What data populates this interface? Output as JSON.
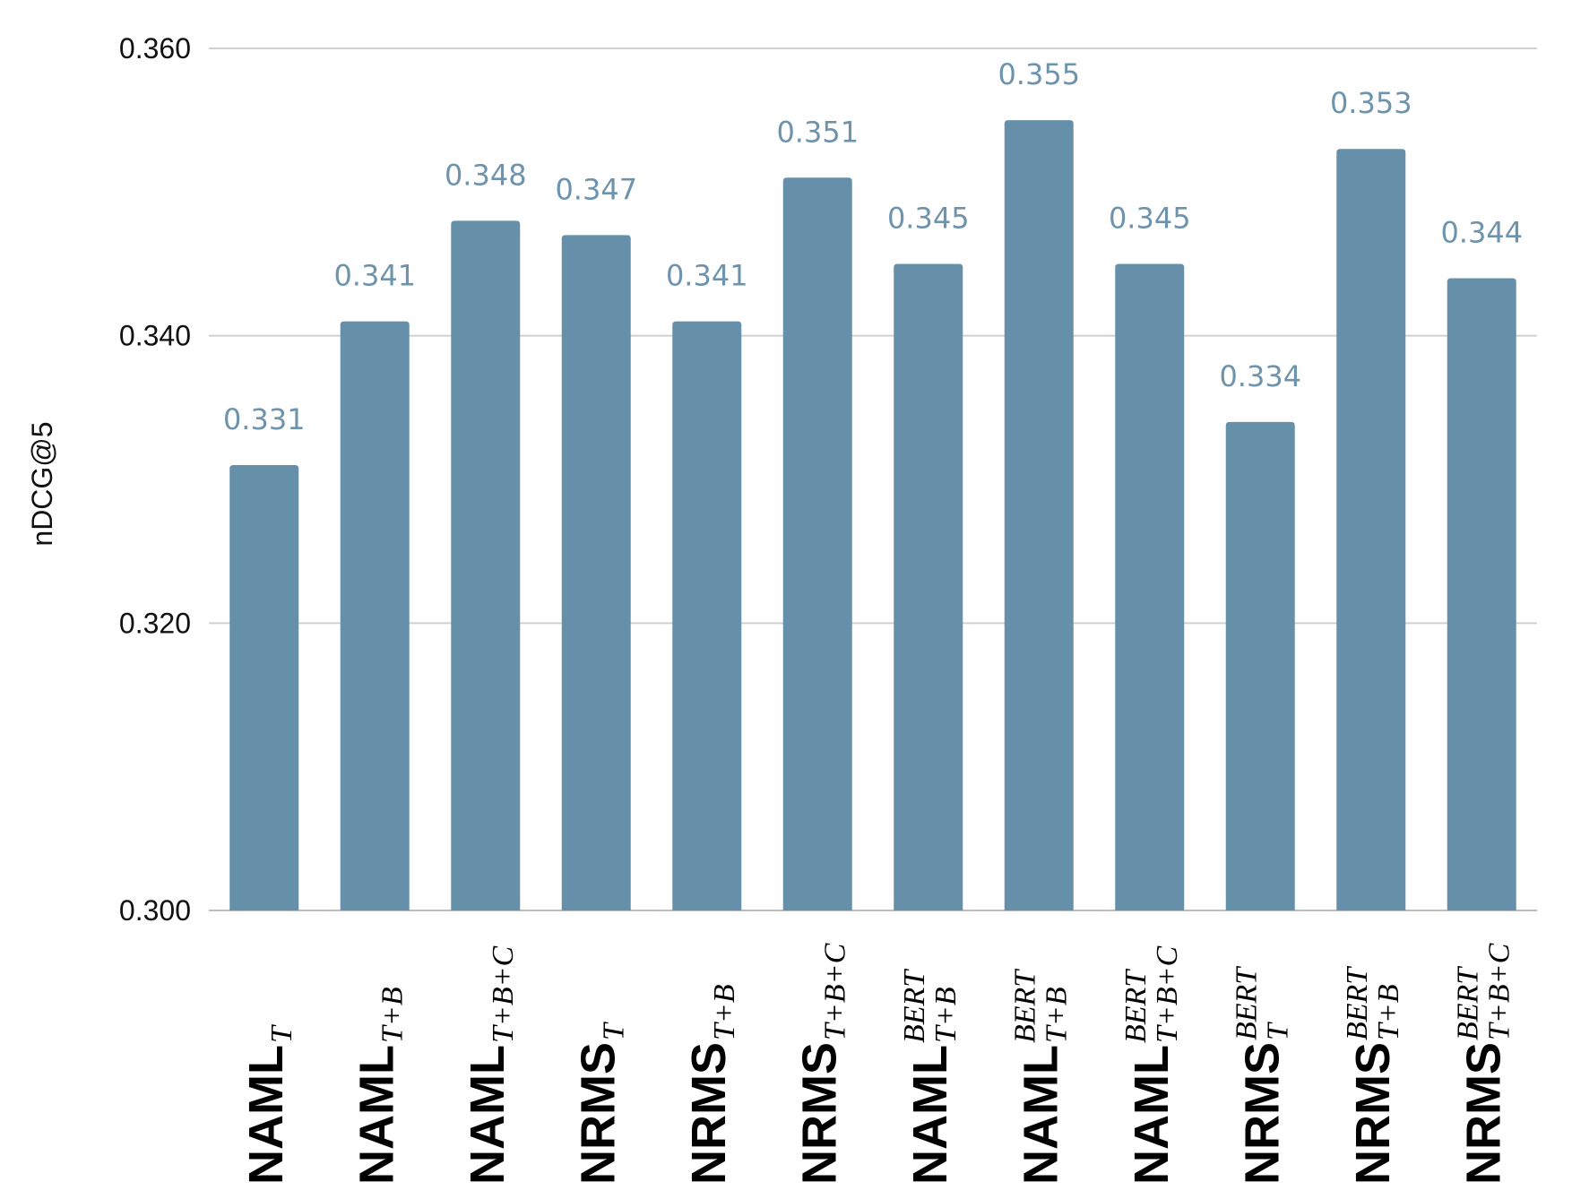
{
  "chart_data": {
    "type": "bar",
    "ylabel": "nDCG@5",
    "ylim": [
      0.3,
      0.36
    ],
    "yticks": [
      "0.300",
      "0.320",
      "0.340",
      "0.360"
    ],
    "grid": true,
    "bar_color": "#6690aa",
    "label_color": "#6e94ad",
    "categories": [
      {
        "base": "NAML",
        "sub": "T",
        "sup": ""
      },
      {
        "base": "NAML",
        "sub": "T+B",
        "sup": ""
      },
      {
        "base": "NAML",
        "sub": "T+B+C",
        "sup": ""
      },
      {
        "base": "NRMS",
        "sub": "T",
        "sup": ""
      },
      {
        "base": "NRMS",
        "sub": "T+B",
        "sup": ""
      },
      {
        "base": "NRMS",
        "sub": "T+B+C",
        "sup": ""
      },
      {
        "base": "NAML",
        "sub": "T+B",
        "sup": "BERT"
      },
      {
        "base": "NAML",
        "sub": "T+B",
        "sup": "BERT"
      },
      {
        "base": "NAML",
        "sub": "T+B+C",
        "sup": "BERT"
      },
      {
        "base": "NRMS",
        "sub": "T",
        "sup": "BERT"
      },
      {
        "base": "NRMS",
        "sub": "T+B",
        "sup": "BERT"
      },
      {
        "base": "NRMS",
        "sub": "T+B+C",
        "sup": "BERT"
      }
    ],
    "values": [
      0.331,
      0.341,
      0.348,
      0.347,
      0.341,
      0.351,
      0.345,
      0.355,
      0.345,
      0.334,
      0.353,
      0.344
    ],
    "value_labels": [
      "0.331",
      "0.341",
      "0.348",
      "0.347",
      "0.341",
      "0.351",
      "0.345",
      "0.355",
      "0.345",
      "0.334",
      "0.353",
      "0.344"
    ]
  }
}
